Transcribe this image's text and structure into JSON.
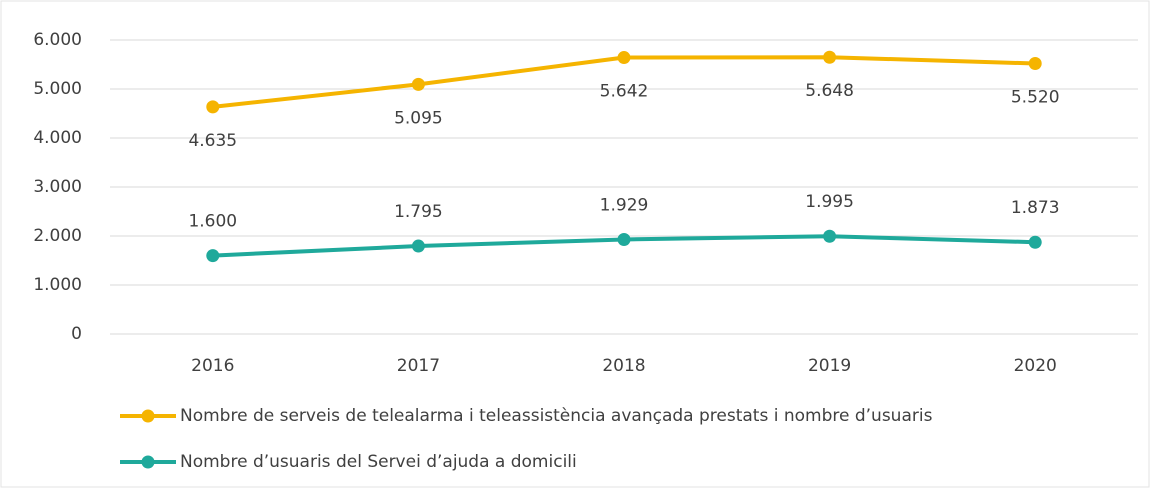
{
  "chart_data": {
    "type": "line",
    "categories": [
      "2016",
      "2017",
      "2018",
      "2019",
      "2020"
    ],
    "series": [
      {
        "name": "Nombre de serveis de telealarma i teleassistència  avançada prestats i nombre d’usuaris",
        "color": "#f5b400",
        "values": [
          4635,
          5095,
          5642,
          5648,
          5520
        ],
        "value_labels": [
          "4.635",
          "5.095",
          "5.642",
          "5.648",
          "5.520"
        ]
      },
      {
        "name": "Nombre d’usuaris del Servei d’ajuda a domicili",
        "color": "#1fa99b",
        "values": [
          1600,
          1795,
          1929,
          1995,
          1873
        ],
        "value_labels": [
          "1.600",
          "1.795",
          "1.929",
          "1.995",
          "1.873"
        ]
      }
    ],
    "ylim": [
      0,
      6000
    ],
    "yticks": [
      0,
      {
        "value": 1000,
        "label": "1.000"
      },
      {
        "value": 2000,
        "label": "2.000"
      },
      {
        "value": 3000,
        "label": "3.000"
      },
      {
        "value": 4000,
        "label": "4.000"
      },
      {
        "value": 5000,
        "label": "5.000"
      },
      {
        "value": 6000,
        "label": "6.000"
      }
    ],
    "grid": true
  }
}
